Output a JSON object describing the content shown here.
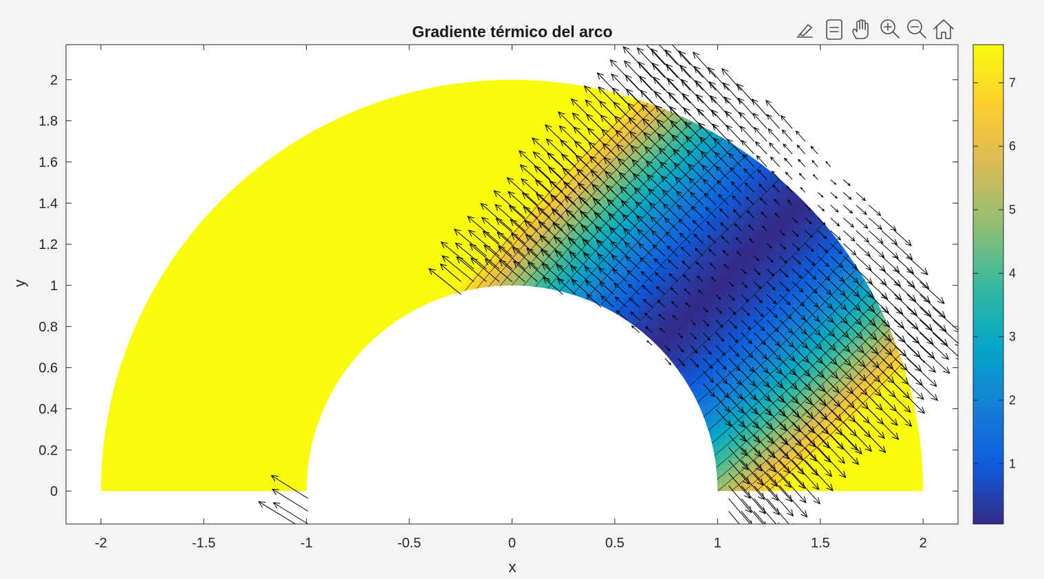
{
  "chart_data": {
    "type": "contour-quiver",
    "title": "Gradiente térmico del arco",
    "xlabel": "x",
    "ylabel": "y",
    "xlim": [
      -2.17,
      2.17
    ],
    "ylim": [
      -0.16,
      2.17
    ],
    "x_ticks": [
      -2,
      -1.5,
      -1,
      -0.5,
      0,
      0.5,
      1,
      1.5,
      2
    ],
    "x_tick_labels": [
      "-2",
      "-1.5",
      "-1",
      "-0.5",
      "0",
      "0.5",
      "1",
      "1.5",
      "2"
    ],
    "y_ticks": [
      0,
      0.2,
      0.4,
      0.6,
      0.8,
      1,
      1.2,
      1.4,
      1.6,
      1.8,
      2
    ],
    "y_tick_labels": [
      "0",
      "0.2",
      "0.4",
      "0.6",
      "0.8",
      "1",
      "1.2",
      "1.4",
      "1.6",
      "1.8",
      "2"
    ],
    "domain": {
      "shape": "half-annulus",
      "inner_radius": 1,
      "outer_radius": 2
    },
    "field": {
      "min_value": 0.05,
      "max_value": 7.6,
      "minimum_at": [
        1.12,
        1.12
      ]
    },
    "contour_levels": [
      0.5,
      1,
      1.5,
      2,
      2.5,
      3,
      3.5,
      4,
      4.5,
      5,
      5.5,
      6,
      6.5,
      7
    ],
    "quiver": {
      "grid_spacing": 0.062,
      "x_range": [
        -2.17,
        2.17
      ],
      "y_range": [
        -0.16,
        2.17
      ],
      "color": "#000000"
    },
    "colorbar": {
      "colormap": "parula",
      "range": [
        0.05,
        7.6
      ],
      "ticks": [
        1,
        2,
        3,
        4,
        5,
        6,
        7
      ],
      "tick_labels": [
        "1",
        "2",
        "3",
        "4",
        "5",
        "6",
        "7"
      ]
    },
    "grid": false
  },
  "toolbar": {
    "icons": [
      "brush-icon",
      "datatip-icon",
      "pan-hand-icon",
      "zoom-in-icon",
      "zoom-out-icon",
      "home-icon"
    ]
  }
}
